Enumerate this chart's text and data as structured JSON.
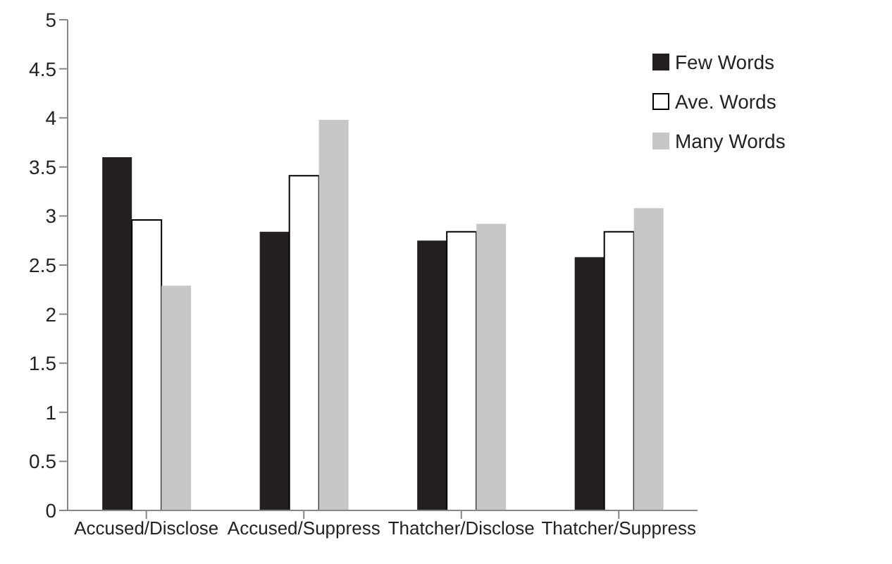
{
  "chart_data": {
    "type": "bar",
    "categories": [
      "Accused/Disclose",
      "Accused/Suppress",
      "Thatcher/Disclose",
      "Thatcher/Suppress"
    ],
    "series": [
      {
        "name": "Few Words",
        "color": "#231f20",
        "values": [
          3.6,
          2.84,
          2.75,
          2.58
        ]
      },
      {
        "name": "Ave. Words",
        "color": "#ffffff",
        "values": [
          2.96,
          3.41,
          2.84,
          2.84
        ]
      },
      {
        "name": "Many Words",
        "color": "#c6c7c9",
        "values": [
          2.29,
          3.98,
          2.92,
          3.08
        ]
      }
    ],
    "ylim": [
      0,
      5
    ],
    "yticks": [
      0,
      0.5,
      1,
      1.5,
      2,
      2.5,
      3,
      3.5,
      4,
      4.5,
      5
    ],
    "grid": false,
    "legend": "top right"
  }
}
